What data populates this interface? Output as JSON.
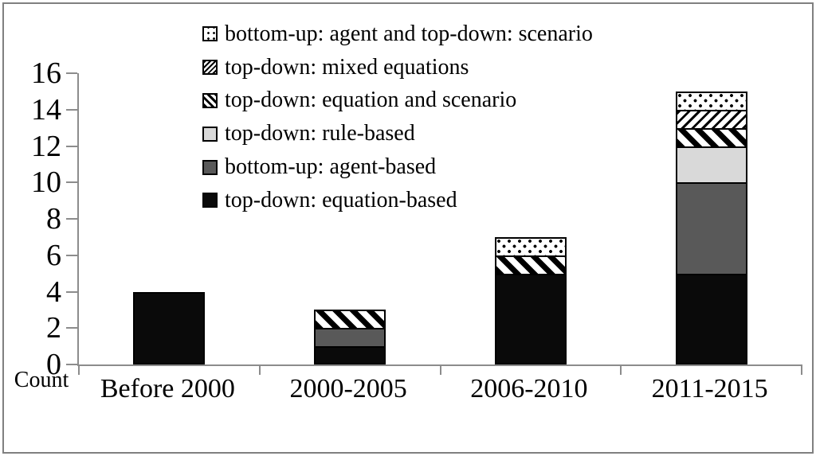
{
  "figure": {
    "background": "#ffffff",
    "border_color": "#808080",
    "axis_color": "#8c8c8c"
  },
  "chart_data": {
    "type": "bar",
    "stacked": true,
    "title": "",
    "xlabel": "",
    "ylabel": "Count",
    "ylim": [
      0,
      16
    ],
    "yticks": [
      0,
      2,
      4,
      6,
      8,
      10,
      12,
      14,
      16
    ],
    "grid": false,
    "legend_position": "top-center-inside",
    "categories": [
      "Before 2000",
      "2000-2005",
      "2006-2010",
      "2011-2015"
    ],
    "series": [
      {
        "name": "top-down: equation-based",
        "pattern": "solid-black",
        "color": "#0a0a0a",
        "values": [
          4,
          1,
          5,
          5
        ]
      },
      {
        "name": "bottom-up: agent-based",
        "pattern": "solid-darkgray",
        "color": "#595959",
        "values": [
          0,
          1,
          0,
          5
        ]
      },
      {
        "name": "top-down: rule-based",
        "pattern": "solid-lightgray",
        "color": "#d9d9d9",
        "values": [
          0,
          0,
          0,
          2
        ]
      },
      {
        "name": "top-down: equation and scenario",
        "pattern": "diag-slash",
        "color": "#000000",
        "values": [
          0,
          1,
          1,
          1
        ]
      },
      {
        "name": "top-down: mixed equations",
        "pattern": "diag-backslash",
        "color": "#000000",
        "values": [
          0,
          0,
          0,
          1
        ]
      },
      {
        "name": "bottom-up: agent and top-down: scenario",
        "pattern": "dots",
        "color": "#000000",
        "values": [
          0,
          0,
          1,
          1
        ]
      }
    ],
    "totals": [
      4,
      3,
      7,
      15
    ],
    "legend_order_top_to_bottom": [
      "bottom-up: agent and top-down: scenario",
      "top-down: mixed equations",
      "top-down: equation and scenario",
      "top-down: rule-based",
      "bottom-up: agent-based",
      "top-down: equation-based"
    ]
  }
}
